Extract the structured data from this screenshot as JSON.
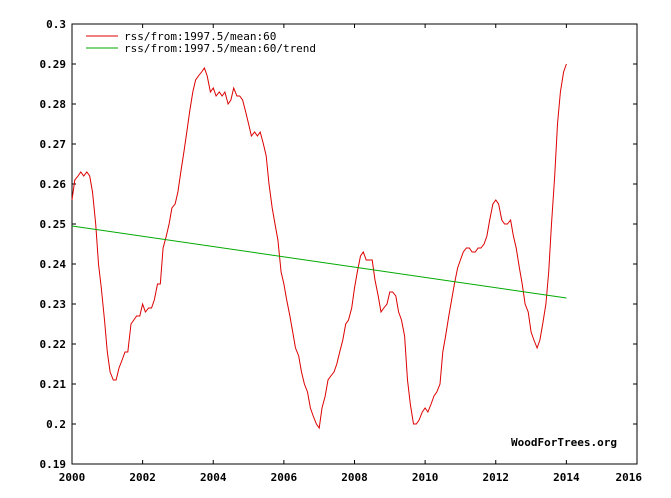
{
  "chart_data": {
    "type": "line",
    "title": "",
    "xlabel": "",
    "ylabel": "",
    "xlim": [
      2000,
      2016
    ],
    "ylim": [
      0.19,
      0.3
    ],
    "x_ticks": [
      "2000",
      "2002",
      "2004",
      "2006",
      "2008",
      "2010",
      "2012",
      "2014",
      "2016"
    ],
    "y_ticks": [
      "0.19",
      "0.2",
      "0.21",
      "0.22",
      "0.23",
      "0.24",
      "0.25",
      "0.26",
      "0.27",
      "0.28",
      "0.29",
      "0.3"
    ],
    "grid": false,
    "legend_position": "top-left",
    "credit": "WoodForTrees.org",
    "series": [
      {
        "name": "rss/from:1997.5/mean:60",
        "color": "#dd0000",
        "points": [
          [
            2000.0,
            0.256
          ],
          [
            2000.08,
            0.261
          ],
          [
            2000.17,
            0.262
          ],
          [
            2000.25,
            0.263
          ],
          [
            2000.33,
            0.262
          ],
          [
            2000.42,
            0.263
          ],
          [
            2000.5,
            0.262
          ],
          [
            2000.58,
            0.258
          ],
          [
            2000.67,
            0.25
          ],
          [
            2000.75,
            0.24
          ],
          [
            2000.83,
            0.234
          ],
          [
            2000.92,
            0.226
          ],
          [
            2001.0,
            0.218
          ],
          [
            2001.08,
            0.213
          ],
          [
            2001.17,
            0.211
          ],
          [
            2001.25,
            0.211
          ],
          [
            2001.33,
            0.214
          ],
          [
            2001.42,
            0.216
          ],
          [
            2001.5,
            0.218
          ],
          [
            2001.58,
            0.218
          ],
          [
            2001.67,
            0.225
          ],
          [
            2001.75,
            0.226
          ],
          [
            2001.83,
            0.227
          ],
          [
            2001.92,
            0.227
          ],
          [
            2002.0,
            0.23
          ],
          [
            2002.08,
            0.228
          ],
          [
            2002.17,
            0.229
          ],
          [
            2002.25,
            0.229
          ],
          [
            2002.33,
            0.231
          ],
          [
            2002.42,
            0.235
          ],
          [
            2002.5,
            0.235
          ],
          [
            2002.58,
            0.244
          ],
          [
            2002.67,
            0.247
          ],
          [
            2002.75,
            0.25
          ],
          [
            2002.83,
            0.254
          ],
          [
            2002.92,
            0.255
          ],
          [
            2003.0,
            0.258
          ],
          [
            2003.08,
            0.263
          ],
          [
            2003.17,
            0.268
          ],
          [
            2003.25,
            0.273
          ],
          [
            2003.33,
            0.278
          ],
          [
            2003.42,
            0.283
          ],
          [
            2003.5,
            0.286
          ],
          [
            2003.58,
            0.287
          ],
          [
            2003.67,
            0.288
          ],
          [
            2003.75,
            0.289
          ],
          [
            2003.83,
            0.287
          ],
          [
            2003.92,
            0.283
          ],
          [
            2004.0,
            0.284
          ],
          [
            2004.08,
            0.282
          ],
          [
            2004.17,
            0.283
          ],
          [
            2004.25,
            0.282
          ],
          [
            2004.33,
            0.283
          ],
          [
            2004.42,
            0.28
          ],
          [
            2004.5,
            0.281
          ],
          [
            2004.58,
            0.284
          ],
          [
            2004.67,
            0.282
          ],
          [
            2004.75,
            0.282
          ],
          [
            2004.83,
            0.281
          ],
          [
            2004.92,
            0.278
          ],
          [
            2005.0,
            0.275
          ],
          [
            2005.08,
            0.272
          ],
          [
            2005.17,
            0.273
          ],
          [
            2005.25,
            0.272
          ],
          [
            2005.33,
            0.273
          ],
          [
            2005.42,
            0.27
          ],
          [
            2005.5,
            0.267
          ],
          [
            2005.58,
            0.26
          ],
          [
            2005.67,
            0.254
          ],
          [
            2005.75,
            0.25
          ],
          [
            2005.83,
            0.246
          ],
          [
            2005.92,
            0.238
          ],
          [
            2006.0,
            0.235
          ],
          [
            2006.08,
            0.231
          ],
          [
            2006.17,
            0.227
          ],
          [
            2006.25,
            0.223
          ],
          [
            2006.33,
            0.219
          ],
          [
            2006.42,
            0.217
          ],
          [
            2006.5,
            0.213
          ],
          [
            2006.58,
            0.21
          ],
          [
            2006.67,
            0.208
          ],
          [
            2006.75,
            0.204
          ],
          [
            2006.83,
            0.202
          ],
          [
            2006.92,
            0.2
          ],
          [
            2007.0,
            0.199
          ],
          [
            2007.08,
            0.204
          ],
          [
            2007.17,
            0.207
          ],
          [
            2007.25,
            0.211
          ],
          [
            2007.33,
            0.212
          ],
          [
            2007.42,
            0.213
          ],
          [
            2007.5,
            0.215
          ],
          [
            2007.58,
            0.218
          ],
          [
            2007.67,
            0.221
          ],
          [
            2007.75,
            0.225
          ],
          [
            2007.83,
            0.226
          ],
          [
            2007.92,
            0.229
          ],
          [
            2008.0,
            0.234
          ],
          [
            2008.08,
            0.238
          ],
          [
            2008.17,
            0.242
          ],
          [
            2008.25,
            0.243
          ],
          [
            2008.33,
            0.241
          ],
          [
            2008.42,
            0.241
          ],
          [
            2008.5,
            0.241
          ],
          [
            2008.58,
            0.236
          ],
          [
            2008.67,
            0.232
          ],
          [
            2008.75,
            0.228
          ],
          [
            2008.83,
            0.229
          ],
          [
            2008.92,
            0.23
          ],
          [
            2009.0,
            0.233
          ],
          [
            2009.08,
            0.233
          ],
          [
            2009.17,
            0.232
          ],
          [
            2009.25,
            0.228
          ],
          [
            2009.33,
            0.226
          ],
          [
            2009.42,
            0.222
          ],
          [
            2009.5,
            0.211
          ],
          [
            2009.58,
            0.205
          ],
          [
            2009.67,
            0.2
          ],
          [
            2009.75,
            0.2
          ],
          [
            2009.83,
            0.201
          ],
          [
            2009.92,
            0.203
          ],
          [
            2010.0,
            0.204
          ],
          [
            2010.08,
            0.203
          ],
          [
            2010.17,
            0.205
          ],
          [
            2010.25,
            0.207
          ],
          [
            2010.33,
            0.208
          ],
          [
            2010.42,
            0.21
          ],
          [
            2010.5,
            0.218
          ],
          [
            2010.58,
            0.222
          ],
          [
            2010.67,
            0.227
          ],
          [
            2010.75,
            0.231
          ],
          [
            2010.83,
            0.235
          ],
          [
            2010.92,
            0.239
          ],
          [
            2011.0,
            0.241
          ],
          [
            2011.08,
            0.243
          ],
          [
            2011.17,
            0.244
          ],
          [
            2011.25,
            0.244
          ],
          [
            2011.33,
            0.243
          ],
          [
            2011.42,
            0.243
          ],
          [
            2011.5,
            0.244
          ],
          [
            2011.58,
            0.244
          ],
          [
            2011.67,
            0.245
          ],
          [
            2011.75,
            0.247
          ],
          [
            2011.83,
            0.251
          ],
          [
            2011.92,
            0.255
          ],
          [
            2012.0,
            0.256
          ],
          [
            2012.08,
            0.255
          ],
          [
            2012.17,
            0.251
          ],
          [
            2012.25,
            0.25
          ],
          [
            2012.33,
            0.25
          ],
          [
            2012.42,
            0.251
          ],
          [
            2012.5,
            0.247
          ],
          [
            2012.58,
            0.244
          ],
          [
            2012.67,
            0.239
          ],
          [
            2012.75,
            0.235
          ],
          [
            2012.83,
            0.23
          ],
          [
            2012.92,
            0.228
          ],
          [
            2013.0,
            0.223
          ],
          [
            2013.08,
            0.221
          ],
          [
            2013.17,
            0.219
          ],
          [
            2013.25,
            0.221
          ],
          [
            2013.33,
            0.225
          ],
          [
            2013.42,
            0.23
          ],
          [
            2013.5,
            0.238
          ],
          [
            2013.58,
            0.25
          ],
          [
            2013.67,
            0.262
          ],
          [
            2013.75,
            0.275
          ],
          [
            2013.83,
            0.283
          ],
          [
            2013.92,
            0.288
          ],
          [
            2014.0,
            0.29
          ]
        ]
      },
      {
        "name": "rss/from:1997.5/mean:60/trend",
        "color": "#00aa00",
        "points": [
          [
            2000.0,
            0.2495
          ],
          [
            2014.0,
            0.2315
          ]
        ]
      }
    ]
  }
}
